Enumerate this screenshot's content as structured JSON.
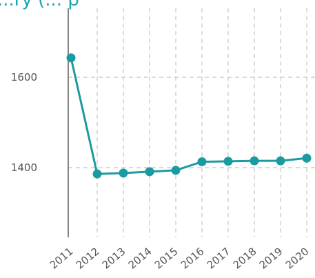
{
  "chart_data": {
    "type": "line",
    "title": "...ry (... p",
    "x": [
      "2011",
      "2012",
      "2013",
      "2014",
      "2015",
      "2016",
      "2017",
      "2018",
      "2019",
      "2020"
    ],
    "series": [
      {
        "values": [
          1643,
          1386,
          1388,
          1391,
          1394,
          1413,
          1414,
          1415,
          1415,
          1421
        ]
      }
    ],
    "y_ticks": [
      "1400",
      "1600"
    ],
    "ylim": [
      1250,
      1820
    ],
    "grid": "dashed vertical lines at each year, dashed horizontal lines at y ticks",
    "colors": {
      "line": "#1a9ba1",
      "title": "#1aa3b0",
      "grid": "#c4c4c4",
      "axis": "#666666",
      "tick_text": "#555555"
    }
  }
}
